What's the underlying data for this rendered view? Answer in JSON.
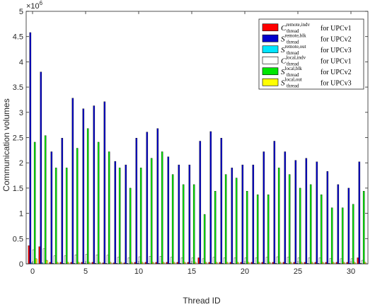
{
  "chart_data": {
    "type": "bar",
    "xlabel": "Thread ID",
    "ylabel": "Communication volumes",
    "y_multiplier": "×10",
    "y_multiplier_exp": "6",
    "xlim": [
      -0.6,
      31.6
    ],
    "ylim": [
      0,
      5
    ],
    "x_ticks": [
      0,
      5,
      10,
      15,
      20,
      25,
      30
    ],
    "y_ticks": [
      0,
      0.5,
      1,
      1.5,
      2,
      2.5,
      3,
      3.5,
      4,
      4.5,
      5
    ],
    "y_tick_labels": [
      "0",
      "0.5",
      "1",
      "1.5",
      "2",
      "2.5",
      "3",
      "3.5",
      "4",
      "4.5",
      "5"
    ],
    "grid": false,
    "legend_position": "top-right",
    "x": [
      0,
      1,
      2,
      3,
      4,
      5,
      6,
      7,
      8,
      9,
      10,
      11,
      12,
      13,
      14,
      15,
      16,
      17,
      18,
      19,
      20,
      21,
      22,
      23,
      24,
      25,
      26,
      27,
      28,
      29,
      30,
      31
    ],
    "series": [
      {
        "name": "remote,indv",
        "symbol": "C",
        "sup": "remote,indv",
        "sub": "thread",
        "suffix": "for UPCv1",
        "color": "#ff0000",
        "values": [
          0.36,
          0.34,
          0.03,
          0.03,
          0.03,
          0.03,
          0.03,
          0.02,
          0.02,
          0.02,
          0.03,
          0.03,
          0.03,
          0.03,
          0.03,
          0.03,
          0.12,
          0.03,
          0.03,
          0.03,
          0.03,
          0.03,
          0.03,
          0.03,
          0.03,
          0.03,
          0.03,
          0.03,
          0.03,
          0.03,
          0.03,
          0.12
        ]
      },
      {
        "name": "remote,blk",
        "symbol": "S",
        "sup": "remote,blk",
        "sub": "thread",
        "suffix": "for UPCv2",
        "color": "#0000cc",
        "values": [
          4.58,
          3.8,
          2.22,
          2.49,
          3.28,
          3.07,
          3.13,
          3.21,
          2.03,
          1.96,
          2.49,
          2.61,
          2.68,
          2.12,
          1.96,
          1.96,
          2.43,
          2.62,
          2.49,
          1.9,
          1.96,
          1.96,
          2.22,
          2.43,
          2.22,
          2.05,
          2.09,
          2.02,
          1.83,
          1.57,
          1.5,
          2.02
        ]
      },
      {
        "name": "remote,out",
        "symbol": "S",
        "sup": "remote,out",
        "sub": "thread",
        "suffix": "for UPCv3",
        "color": "#00e5ff",
        "values": [
          0.02,
          0.02,
          0.01,
          0.01,
          0.01,
          0.01,
          0.01,
          0.01,
          0.01,
          0.01,
          0.01,
          0.01,
          0.01,
          0.01,
          0.01,
          0.01,
          0.01,
          0.01,
          0.01,
          0.01,
          0.01,
          0.01,
          0.01,
          0.01,
          0.01,
          0.01,
          0.01,
          0.01,
          0.01,
          0.01,
          0.01,
          0.01
        ]
      },
      {
        "name": "local,indv",
        "symbol": "C",
        "sup": "local,indv",
        "sub": "thread",
        "suffix": "for UPCv1",
        "color": "#ffffff",
        "values": [
          0.28,
          0.3,
          0.16,
          0.16,
          0.18,
          0.19,
          0.18,
          0.17,
          0.13,
          0.12,
          0.14,
          0.15,
          0.15,
          0.13,
          0.12,
          0.12,
          0.1,
          0.13,
          0.12,
          0.12,
          0.12,
          0.12,
          0.13,
          0.14,
          0.13,
          0.12,
          0.12,
          0.12,
          0.11,
          0.1,
          0.1,
          0.07
        ]
      },
      {
        "name": "local,blk",
        "symbol": "S",
        "sup": "local,blk",
        "sub": "thread",
        "suffix": "for UPCv2",
        "color": "#00e600",
        "values": [
          2.41,
          2.54,
          1.9,
          1.9,
          2.29,
          2.68,
          2.41,
          2.22,
          1.9,
          1.5,
          1.9,
          2.09,
          2.22,
          1.77,
          1.57,
          1.57,
          0.98,
          1.44,
          1.77,
          1.7,
          1.44,
          1.37,
          1.37,
          1.9,
          1.77,
          1.5,
          1.57,
          1.37,
          1.11,
          1.11,
          1.18,
          1.44
        ]
      },
      {
        "name": "local,out",
        "symbol": "S",
        "sup": "local,out",
        "sub": "thread",
        "suffix": "for UPCv3",
        "color": "#ffff00",
        "values": [
          0.1,
          0.07,
          0.03,
          0.03,
          0.03,
          0.03,
          0.03,
          0.03,
          0.03,
          0.03,
          0.03,
          0.03,
          0.03,
          0.03,
          0.03,
          0.03,
          0.03,
          0.03,
          0.03,
          0.03,
          0.03,
          0.03,
          0.03,
          0.03,
          0.03,
          0.03,
          0.03,
          0.03,
          0.03,
          0.03,
          0.03,
          0.03
        ]
      }
    ]
  }
}
